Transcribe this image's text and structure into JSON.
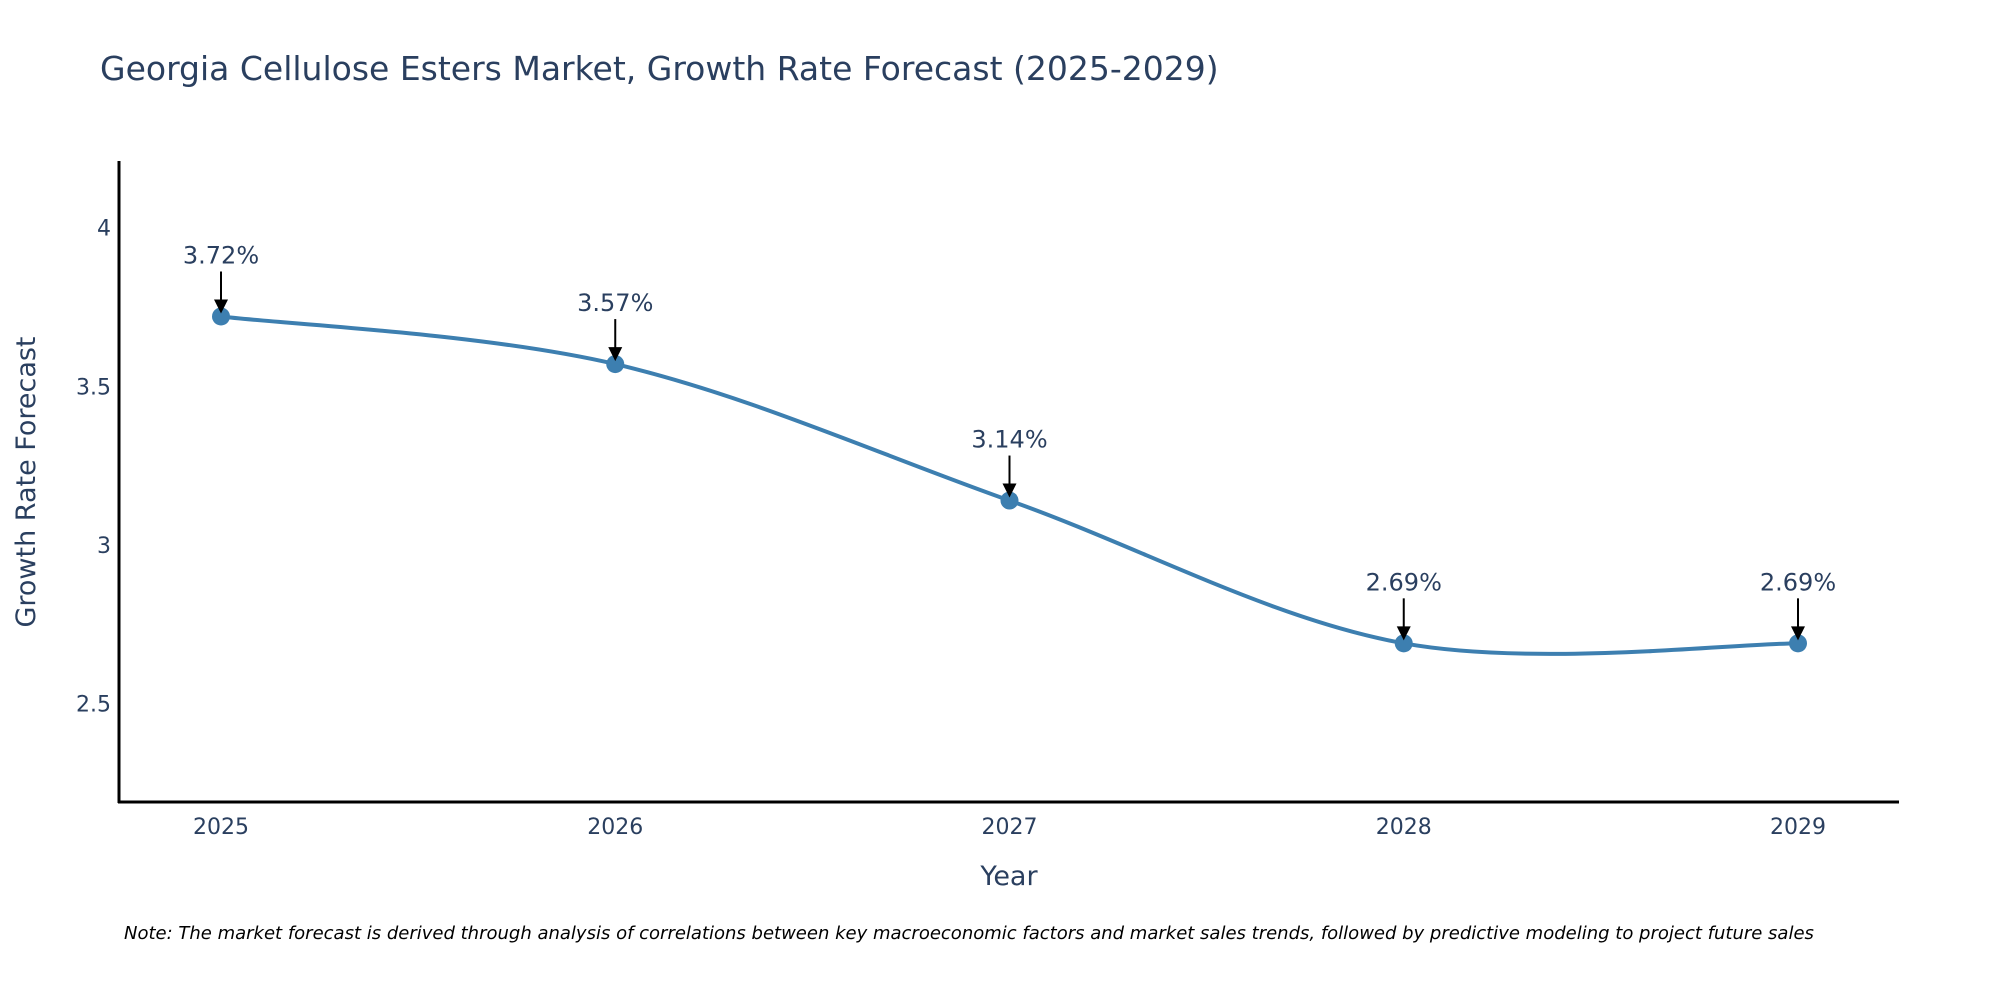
{
  "chart_data": {
    "type": "line",
    "title": "Georgia Cellulose Esters Market, Growth Rate Forecast (2025-2029)",
    "xlabel": "Year",
    "ylabel": "Growth Rate Forecast",
    "x": [
      "2025",
      "2026",
      "2027",
      "2028",
      "2029"
    ],
    "series": [
      {
        "name": "Growth Rate Forecast",
        "values": [
          3.72,
          3.57,
          3.14,
          2.69,
          2.69
        ],
        "color": "#3d7fb0"
      }
    ],
    "annotations": [
      "3.72%",
      "3.57%",
      "3.14%",
      "2.69%",
      "2.69%"
    ],
    "y_ticks": [
      "2.5",
      "3",
      "3.5",
      "4"
    ],
    "y_tick_values": [
      2.5,
      3,
      3.5,
      4
    ],
    "ylim": [
      2.19,
      4.21
    ],
    "grid": false,
    "line_shape": "spline",
    "note": "Note: The market forecast is derived through analysis of correlations between key macroeconomic factors and market sales trends, followed by predictive modeling to project future sales"
  }
}
